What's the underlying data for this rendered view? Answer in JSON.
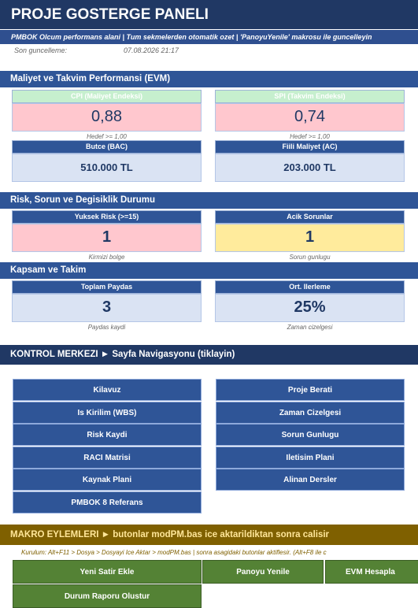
{
  "header": {
    "title": "PROJE GOSTERGE PANELI",
    "subtitle": "PMBOK Olcum performans alani  |  Tum sekmelerden otomatik ozet  |  'PanoyuYenile' makrosu ile guncelleyin",
    "updated_label": "Son guncelleme:",
    "updated_value": "07.08.2026 21:17"
  },
  "sections": [
    {
      "title": "Maliyet ve Takvim Performansi (EVM)",
      "cards": [
        {
          "header": "CPI (Maliyet Endeksi)",
          "value": "0,88",
          "note": "Hedef >= 1,00"
        },
        {
          "header": "SPI (Takvim Endeksi)",
          "value": "0,74",
          "note": "Hedef >= 1,00"
        },
        {
          "header": "Butce (BAC)",
          "value": "510.000 TL"
        },
        {
          "header": "Fiili Maliyet (AC)",
          "value": "203.000 TL"
        }
      ]
    },
    {
      "title": "Risk, Sorun ve Degisiklik Durumu",
      "cards": [
        {
          "header": "Yuksek Risk (>=15)",
          "value": "1",
          "note": "Kirmizi bolge"
        },
        {
          "header": "Acik Sorunlar",
          "value": "1",
          "note": "Sorun gunlugu"
        }
      ]
    },
    {
      "title": "Kapsam ve Takim",
      "cards": [
        {
          "header": "Toplam Paydas",
          "value": "3",
          "note": "Paydas kaydi"
        },
        {
          "header": "Ort. Ilerleme",
          "value": "25%",
          "note": "Zaman cizelgesi"
        }
      ]
    }
  ],
  "navigation": {
    "title": "KONTROL MERKEZI  ►  Sayfa Navigasyonu (tiklayin)",
    "buttons": [
      "Kilavuz",
      "Proje Berati",
      "Is Kirilim (WBS)",
      "Zaman Cizelgesi",
      "Risk Kaydi",
      "Sorun Gunlugu",
      "RACI Matrisi",
      "Iletisim Plani",
      "Kaynak Plani",
      "Alinan Dersler",
      "PMBOK 8 Referans"
    ]
  },
  "macros": {
    "title": "MAKRO EYLEMLERI  ►  butonlar modPM.bas ice aktarildiktan sonra calisir",
    "instruction": "Kurulum: Alt+F11  >  Dosya > Dosyayi Ice Aktar  >  modPM.bas  |  sonra asagidaki butonlar aktiflesir. (Alt+F8 ile c",
    "buttons": [
      "Yeni Satir Ekle",
      "Panoyu Yenile",
      "EVM Hesapla",
      "Durum Raporu Olustur"
    ]
  }
}
